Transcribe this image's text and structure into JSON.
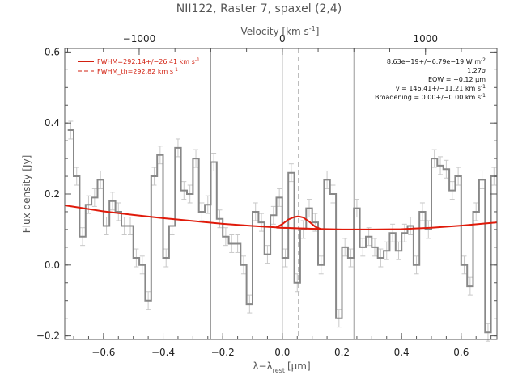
{
  "chart_data": {
    "type": "line",
    "title": "NII122, Raster 7, spaxel (2,4)",
    "xlabel": "λ−λ",
    "xlabel_sub": "rest",
    "xlabel_unit": "[μm]",
    "ylabel": "Flux density [Jy]",
    "top_xlabel": "Velocity [km s",
    "top_xlabel_exp": "-1",
    "top_xlabel_end": "]",
    "xlim": [
      -0.73,
      0.72
    ],
    "ylim": [
      -0.21,
      0.61
    ],
    "x_ticks": [
      -0.6,
      -0.4,
      -0.2,
      0.0,
      0.2,
      0.4,
      0.6
    ],
    "x_tick_labels": [
      "−0.6",
      "−0.4",
      "−0.2",
      "0.0",
      "0.2",
      "0.4",
      "0.6"
    ],
    "y_ticks": [
      -0.2,
      0.0,
      0.2,
      0.4,
      0.6
    ],
    "y_tick_labels": [
      "−0.2",
      "0.0",
      "0.2",
      "0.4",
      "0.6"
    ],
    "top_ticks_um": [
      -0.4803,
      0.0,
      0.4803
    ],
    "top_tick_labels": [
      "−1000",
      "0",
      "1000"
    ],
    "legend": [
      {
        "label": "FWHM=292.14+/−26.41 km s",
        "exp": "-1",
        "style": "solid",
        "color": "#d22010"
      },
      {
        "label": "FWHM_th=292.82 km s",
        "exp": "-1",
        "style": "dashed",
        "color": "#d22010"
      }
    ],
    "annotations": [
      {
        "text": "8.63e−19+/−6.79e−19 W m",
        "exp": "-2"
      },
      {
        "text": "1.27σ",
        "exp": ""
      },
      {
        "text": "EQW = −0.12 μm",
        "exp": ""
      },
      {
        "text": "v = 146.41+/−11.21 km s",
        "exp": "-1"
      },
      {
        "text": "Broadening = 0.00+/−0.00 km s",
        "exp": "-1"
      }
    ],
    "vlines_solid": [
      -0.24,
      0.0,
      0.24
    ],
    "vline_dashed": 0.054,
    "series": [
      {
        "kind": "step",
        "color": "#888888",
        "x": [
          -0.71,
          -0.69,
          -0.67,
          -0.65,
          -0.63,
          -0.61,
          -0.59,
          -0.57,
          -0.55,
          -0.53,
          -0.51,
          -0.49,
          -0.47,
          -0.45,
          -0.43,
          -0.41,
          -0.39,
          -0.37,
          -0.35,
          -0.33,
          -0.31,
          -0.29,
          -0.27,
          -0.25,
          -0.23,
          -0.21,
          -0.19,
          -0.17,
          -0.15,
          -0.13,
          -0.11,
          -0.09,
          -0.07,
          -0.05,
          -0.03,
          -0.01,
          0.01,
          0.03,
          0.05,
          0.07,
          0.09,
          0.11,
          0.13,
          0.15,
          0.17,
          0.19,
          0.21,
          0.23,
          0.25,
          0.27,
          0.29,
          0.31,
          0.33,
          0.35,
          0.37,
          0.39,
          0.41,
          0.43,
          0.45,
          0.47,
          0.49,
          0.51,
          0.53,
          0.55,
          0.57,
          0.59,
          0.61,
          0.63,
          0.65,
          0.67,
          0.69,
          0.71
        ],
        "y": [
          0.38,
          0.25,
          0.08,
          0.17,
          0.19,
          0.24,
          0.11,
          0.18,
          0.15,
          0.11,
          0.11,
          0.02,
          0.0,
          -0.1,
          0.25,
          0.31,
          0.02,
          0.11,
          0.33,
          0.21,
          0.2,
          0.3,
          0.15,
          0.17,
          0.29,
          0.13,
          0.08,
          0.06,
          0.06,
          0.0,
          -0.11,
          0.15,
          0.12,
          0.03,
          0.14,
          0.19,
          0.02,
          0.26,
          -0.05,
          0.1,
          0.16,
          0.12,
          0.0,
          0.24,
          0.2,
          -0.15,
          0.05,
          0.02,
          0.16,
          0.05,
          0.08,
          0.05,
          0.02,
          0.04,
          0.09,
          0.04,
          0.09,
          0.11,
          0.0,
          0.15,
          0.1,
          0.3,
          0.28,
          0.27,
          0.21,
          0.25,
          0.0,
          -0.06,
          0.15,
          0.24,
          -0.19,
          0.25
        ],
        "err": 0.025
      },
      {
        "kind": "line",
        "name": "baseline",
        "color": "#e01a0a",
        "x": [
          -0.73,
          -0.6,
          -0.5,
          -0.4,
          -0.3,
          -0.2,
          -0.1,
          0.0,
          0.1,
          0.2,
          0.3,
          0.4,
          0.5,
          0.6,
          0.72
        ],
        "y": [
          0.168,
          0.151,
          0.141,
          0.132,
          0.124,
          0.116,
          0.11,
          0.105,
          0.102,
          0.1,
          0.1,
          0.101,
          0.105,
          0.111,
          0.12
        ]
      },
      {
        "kind": "line",
        "name": "gaussian",
        "color": "#e01a0a",
        "x": [
          -0.02,
          0.0,
          0.02,
          0.04,
          0.054,
          0.07,
          0.09,
          0.11,
          0.13
        ],
        "y": [
          0.106,
          0.115,
          0.128,
          0.135,
          0.137,
          0.134,
          0.122,
          0.108,
          0.101
        ]
      },
      {
        "kind": "line",
        "name": "gaussian-peak-base",
        "color": "#e01a0a",
        "x": [
          -0.02,
          0.13
        ],
        "y": [
          0.104,
          0.101
        ]
      }
    ]
  }
}
